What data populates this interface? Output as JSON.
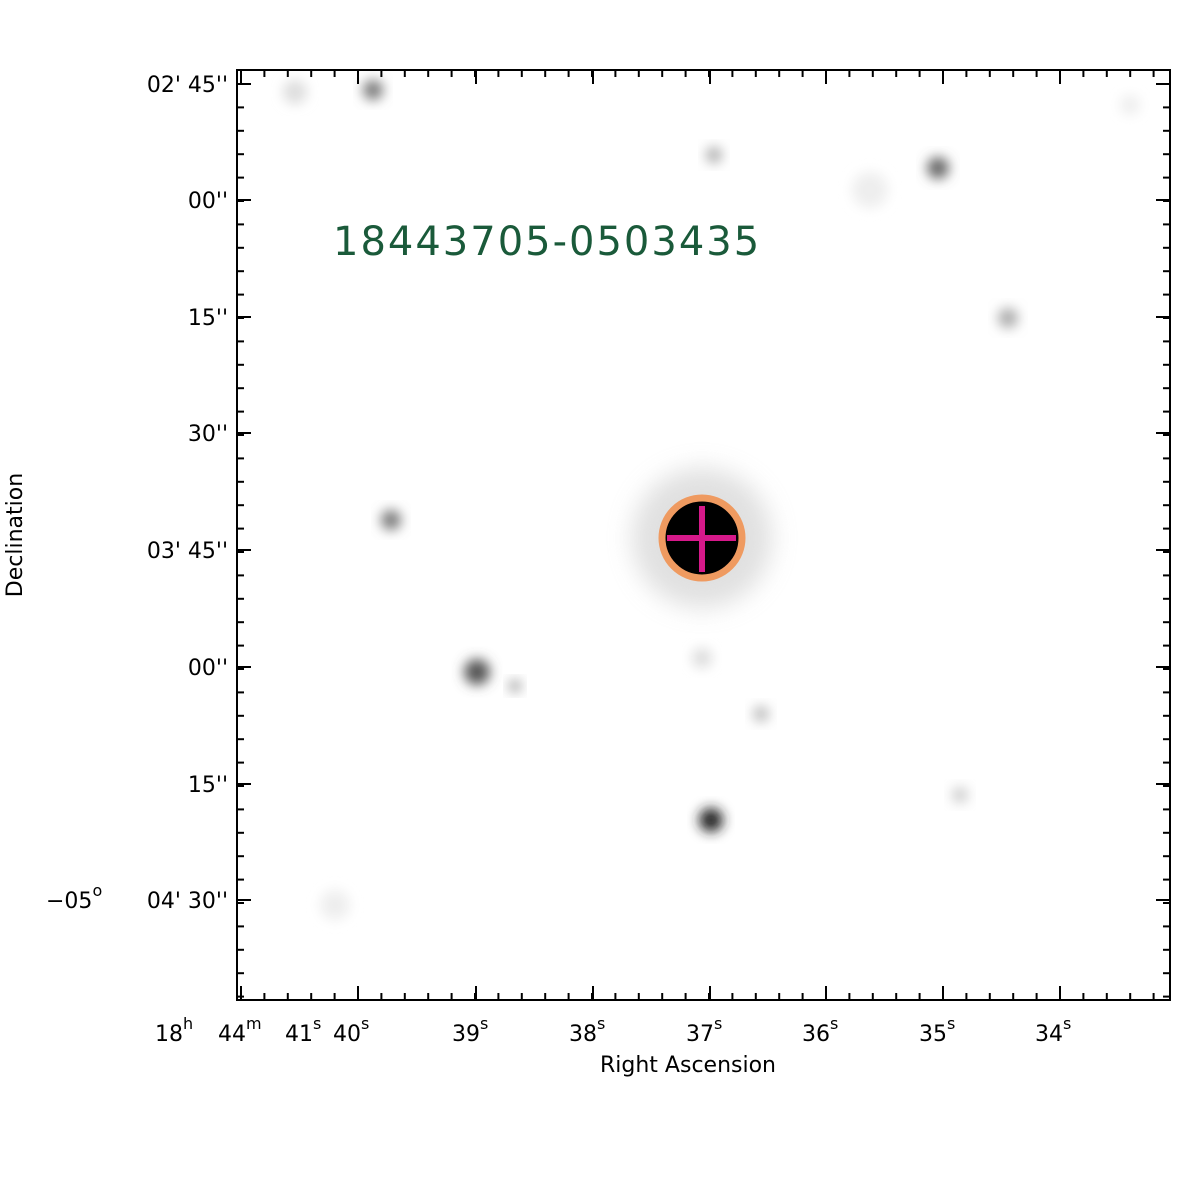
{
  "source_name": "18443705-0503435",
  "x_axis": {
    "label": "Right Ascension",
    "ticks": [
      {
        "main": "18",
        "sup": "h"
      },
      {
        "main": "44",
        "sup": "m"
      },
      {
        "main": "41",
        "sup": "s"
      },
      {
        "main": "40",
        "sup": "s"
      },
      {
        "main": "39",
        "sup": "s"
      },
      {
        "main": "38",
        "sup": "s"
      },
      {
        "main": "37",
        "sup": "s"
      },
      {
        "main": "36",
        "sup": "s"
      },
      {
        "main": "35",
        "sup": "s"
      },
      {
        "main": "34",
        "sup": "s"
      }
    ]
  },
  "y_axis": {
    "label": "Declination",
    "ticks": [
      "02' 45''",
      "00''",
      "15''",
      "30''",
      "03' 45''",
      "00''",
      "15''",
      "04' 30''"
    ],
    "degree_prefix": {
      "main": "−05",
      "sup": "o"
    }
  }
}
